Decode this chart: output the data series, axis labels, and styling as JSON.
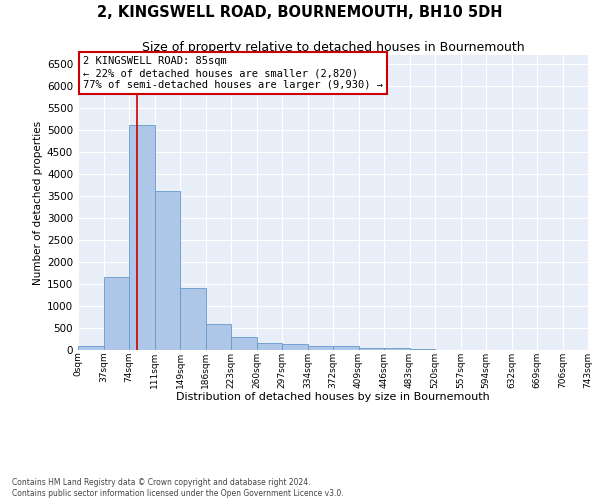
{
  "title": "2, KINGSWELL ROAD, BOURNEMOUTH, BH10 5DH",
  "subtitle": "Size of property relative to detached houses in Bournemouth",
  "xlabel": "Distribution of detached houses by size in Bournemouth",
  "ylabel": "Number of detached properties",
  "bar_color": "#aec6e8",
  "bar_edge_color": "#6699cc",
  "background_color": "#e8eef8",
  "grid_color": "#ffffff",
  "annotation_text": "2 KINGSWELL ROAD: 85sqm\n← 22% of detached houses are smaller (2,820)\n77% of semi-detached houses are larger (9,930) →",
  "property_size": 85,
  "vline_color": "#cc0000",
  "bin_edges": [
    0,
    37,
    74,
    111,
    148,
    185,
    222,
    259,
    296,
    333,
    370,
    407,
    444,
    481,
    518,
    555,
    592,
    629,
    666,
    703,
    740
  ],
  "bar_heights": [
    80,
    1650,
    5100,
    3600,
    1400,
    600,
    300,
    160,
    130,
    100,
    80,
    50,
    50,
    15,
    8,
    5,
    3,
    2,
    1,
    0
  ],
  "xtick_labels": [
    "0sqm",
    "37sqm",
    "74sqm",
    "111sqm",
    "149sqm",
    "186sqm",
    "223sqm",
    "260sqm",
    "297sqm",
    "334sqm",
    "372sqm",
    "409sqm",
    "446sqm",
    "483sqm",
    "520sqm",
    "557sqm",
    "594sqm",
    "632sqm",
    "669sqm",
    "706sqm",
    "743sqm"
  ],
  "ylim": [
    0,
    6700
  ],
  "footnote": "Contains HM Land Registry data © Crown copyright and database right 2024.\nContains public sector information licensed under the Open Government Licence v3.0.",
  "title_fontsize": 10.5,
  "subtitle_fontsize": 9
}
